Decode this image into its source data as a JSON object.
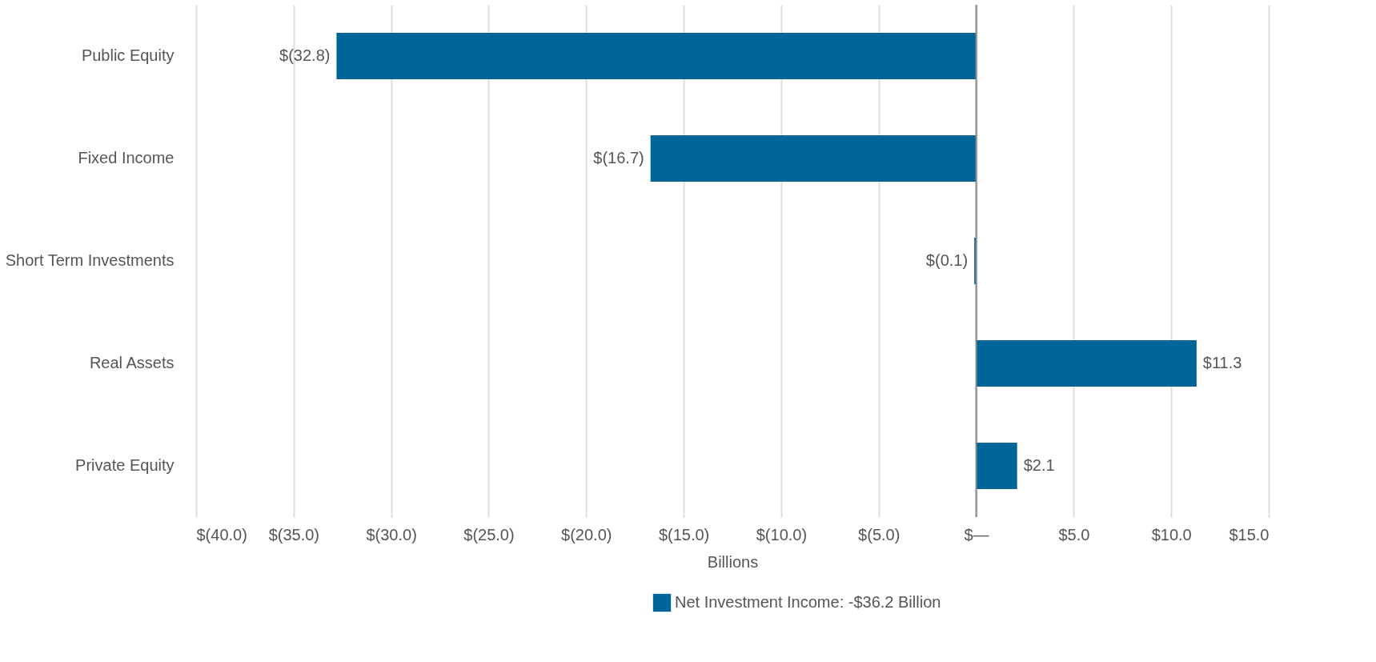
{
  "chart_data": {
    "type": "bar",
    "orientation": "horizontal",
    "xlabel": "Billions",
    "categories": [
      "Public Equity",
      "Fixed Income",
      "Short Term Investments",
      "Real Assets",
      "Private Equity"
    ],
    "series": [
      {
        "name": "Net Investment Income: -$36.2 Billion",
        "color": "#006699",
        "values": [
          -32.8,
          -16.7,
          -0.1,
          11.3,
          2.1
        ],
        "value_labels": [
          "$(32.8)",
          "$(16.7)",
          "$(0.1)",
          "$11.3",
          "$2.1"
        ]
      }
    ],
    "xlim": [
      -40,
      15
    ],
    "xticks": [
      {
        "value": -40,
        "label": "$(40.0)"
      },
      {
        "value": -35,
        "label": "$(35.0)"
      },
      {
        "value": -30,
        "label": "$(30.0)"
      },
      {
        "value": -25,
        "label": "$(25.0)"
      },
      {
        "value": -20,
        "label": "$(20.0)"
      },
      {
        "value": -15,
        "label": "$(15.0)"
      },
      {
        "value": -10,
        "label": "$(10.0)"
      },
      {
        "value": -5,
        "label": "$(5.0)"
      },
      {
        "value": 0,
        "label": "$—"
      },
      {
        "value": 5,
        "label": "$5.0"
      },
      {
        "value": 10,
        "label": "$10.0"
      },
      {
        "value": 15,
        "label": "$15.0"
      }
    ],
    "grid": "x",
    "legend": "bottom",
    "ref_lines": [
      {
        "axis": "x",
        "value": 0,
        "color": "#888888"
      }
    ]
  }
}
